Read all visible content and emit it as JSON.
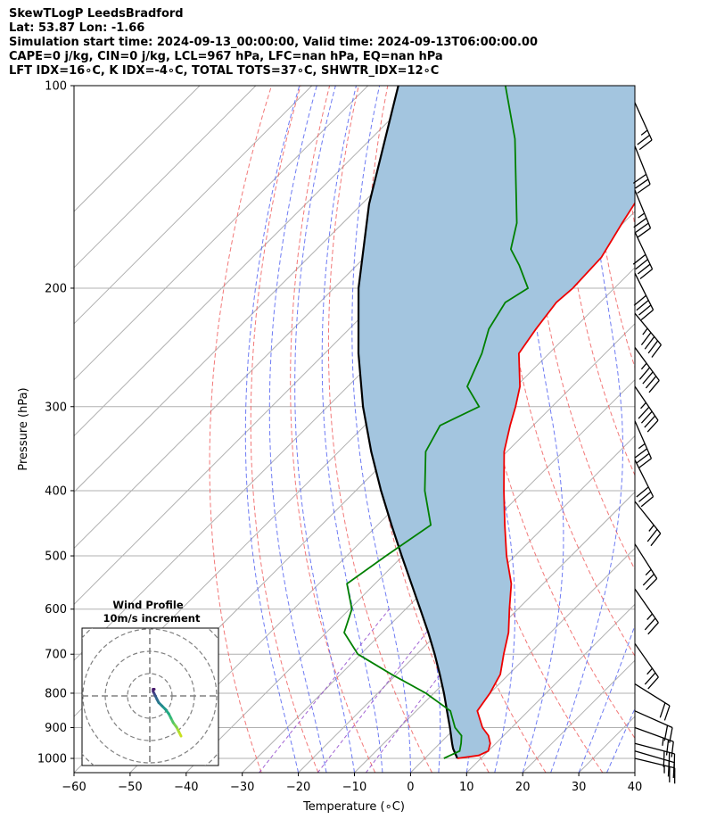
{
  "header": {
    "line1": "SkewTLogP LeedsBradford",
    "line2": "Lat: 53.87   Lon: -1.66",
    "line3": "Simulation start time: 2024-09-13_00:00:00, Valid time: 2024-09-13T06:00:00.00",
    "line4": "CAPE=0 j/kg, CIN=0 j/kg, LCL=967 hPa, LFC=nan hPa, EQ=nan hPa",
    "line5": "LFT IDX=16∘C, K IDX=-4∘C, TOTAL TOTS=37∘C, SHWTR_IDX=12∘C"
  },
  "chart_data": {
    "type": "line",
    "xlabel": "Temperature (∘C)",
    "ylabel": "Pressure (hPa)",
    "xlim": [
      -60,
      40
    ],
    "ylim": [
      1050,
      100
    ],
    "y_scale": "log",
    "x_ticks": [
      -60,
      -50,
      -40,
      -30,
      -20,
      -10,
      0,
      10,
      20,
      30,
      40
    ],
    "x_tick_labels": [
      "−60",
      "−50",
      "−40",
      "−30",
      "−20",
      "−10",
      "0",
      "10",
      "20",
      "30",
      "40"
    ],
    "y_ticks": [
      1000,
      900,
      800,
      700,
      600,
      500,
      400,
      300,
      200,
      100
    ],
    "y_tick_labels": [
      "1000",
      "900",
      "800",
      "700",
      "600",
      "500",
      "400",
      "300",
      "200",
      "100"
    ],
    "grid": true,
    "colors": {
      "temperature": "#ee0000",
      "dewpoint": "#008000",
      "parcel": "#000000",
      "shade": "#a3c5df",
      "dry_adiabat": "#f06060",
      "moist_adiabat": "#4a5af0",
      "mixing_ratio": "#8a3cc8"
    },
    "series": [
      {
        "key": "temperature",
        "pressure": [
          1000,
          990,
          975,
          950,
          925,
          900,
          850,
          800,
          750,
          700,
          650,
          600,
          550,
          500,
          450,
          400,
          350,
          320,
          300,
          280,
          250,
          230,
          210,
          200,
          180,
          160,
          140,
          120,
          100
        ],
        "values": [
          5.8,
          9.1,
          10,
          9,
          7.3,
          4.8,
          0.9,
          0,
          -1.5,
          -4.5,
          -7.5,
          -11.5,
          -15.7,
          -21.5,
          -27.3,
          -33.6,
          -40.5,
          -44.1,
          -46.5,
          -49.3,
          -55.4,
          -56.7,
          -57.8,
          -57.4,
          -57.8,
          -60.2,
          -62.7,
          -66.1,
          -70.1
        ]
      },
      {
        "key": "dewpoint",
        "pressure": [
          1000,
          990,
          975,
          950,
          925,
          900,
          850,
          800,
          750,
          700,
          650,
          600,
          550,
          500,
          450,
          400,
          350,
          320,
          300,
          280,
          250,
          230,
          210,
          200,
          185,
          175,
          160,
          140,
          120,
          100
        ],
        "values": [
          3.4,
          4.0,
          4.9,
          3.8,
          2.5,
          -0.1,
          -3.9,
          -11.4,
          -20.9,
          -30.5,
          -36.8,
          -39.6,
          -45.0,
          -43.0,
          -40.5,
          -47.7,
          -54.5,
          -56.6,
          -53.0,
          -58.7,
          -62.0,
          -65.1,
          -66.9,
          -65.4,
          -71.0,
          -75.4,
          -79.0,
          -86.1,
          -94.3,
          -105.5
        ]
      },
      {
        "key": "parcel",
        "pressure": [
          1000,
          967,
          950,
          900,
          850,
          800,
          750,
          700,
          650,
          600,
          550,
          500,
          450,
          400,
          350,
          300,
          250,
          200,
          150,
          100
        ],
        "values": [
          5.8,
          3.3,
          2.2,
          -1.0,
          -4.5,
          -8.2,
          -12.3,
          -16.8,
          -21.8,
          -27.4,
          -33.5,
          -40.2,
          -47.5,
          -55.5,
          -64.2,
          -73.7,
          -84.0,
          -95.6,
          -108.7,
          -124.6
        ]
      }
    ],
    "wind_barbs": [
      {
        "p": 1000,
        "u": -25,
        "v": 6
      },
      {
        "p": 975,
        "u": -24,
        "v": 7
      },
      {
        "p": 950,
        "u": -23,
        "v": 6
      },
      {
        "p": 900,
        "u": -22,
        "v": 8
      },
      {
        "p": 850,
        "u": -18,
        "v": 8
      },
      {
        "p": 775,
        "u": -16,
        "v": 10
      },
      {
        "p": 675,
        "u": -14,
        "v": 20
      },
      {
        "p": 560,
        "u": -14,
        "v": 20
      },
      {
        "p": 480,
        "u": -14,
        "v": 22
      },
      {
        "p": 415,
        "u": -16,
        "v": 20
      },
      {
        "p": 360,
        "u": -14,
        "v": 28
      },
      {
        "p": 315,
        "u": -14,
        "v": 32
      },
      {
        "p": 280,
        "u": -26,
        "v": 38
      },
      {
        "p": 245,
        "u": -28,
        "v": 38
      },
      {
        "p": 218,
        "u": -30,
        "v": 36
      },
      {
        "p": 190,
        "u": -18,
        "v": 36
      },
      {
        "p": 165,
        "u": -16,
        "v": 34
      },
      {
        "p": 143,
        "u": -14,
        "v": 34
      },
      {
        "p": 123,
        "u": -12,
        "v": 30
      },
      {
        "p": 106,
        "u": -10,
        "v": 22
      }
    ],
    "wind_profile": {
      "title": "Wind Profile",
      "subtitle": "10m/s increment",
      "u": [
        14,
        13,
        12,
        10.5,
        9.5,
        8.5,
        7,
        5.5,
        4,
        3.2,
        2.5,
        2,
        1.5,
        1.5,
        2
      ],
      "v": [
        -18,
        -16,
        -14,
        -12,
        -10,
        -8,
        -6,
        -4.5,
        -3,
        -1.5,
        0,
        1,
        2,
        3,
        3
      ]
    }
  }
}
